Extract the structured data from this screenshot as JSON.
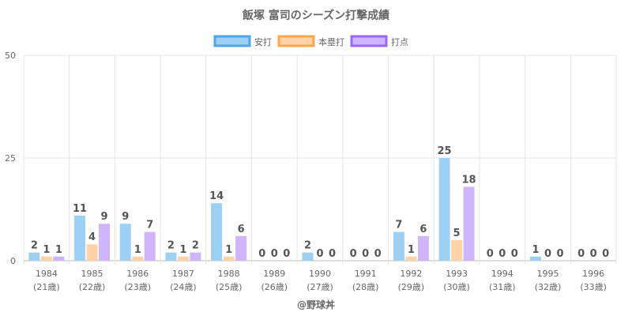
{
  "chart_data": {
    "type": "bar",
    "title": "飯塚 富司のシーズン打撃成績",
    "categories": [
      "1984",
      "1985",
      "1986",
      "1987",
      "1988",
      "1989",
      "1990",
      "1991",
      "1992",
      "1993",
      "1994",
      "1995",
      "1996"
    ],
    "sublabels": [
      "(21歳)",
      "(22歳)",
      "(23歳)",
      "(24歳)",
      "(25歳)",
      "(26歳)",
      "(27歳)",
      "(28歳)",
      "(29歳)",
      "(30歳)",
      "(31歳)",
      "(32歳)",
      "(33歳)"
    ],
    "series": [
      {
        "name": "安打",
        "values": [
          2,
          11,
          9,
          2,
          14,
          0,
          2,
          0,
          7,
          25,
          0,
          1,
          0
        ],
        "fill": "#9dd0f5",
        "stroke": "#4ea6e8"
      },
      {
        "name": "本塁打",
        "values": [
          1,
          4,
          1,
          1,
          1,
          0,
          0,
          0,
          1,
          5,
          0,
          0,
          0
        ],
        "fill": "#ffd3a5",
        "stroke": "#ffa64d"
      },
      {
        "name": "打点",
        "values": [
          1,
          9,
          7,
          2,
          6,
          0,
          0,
          0,
          6,
          18,
          0,
          0,
          0
        ],
        "fill": "#cfb5fd",
        "stroke": "#9966ff"
      }
    ],
    "ylim": [
      0,
      50
    ],
    "yticks": [
      "0",
      "25",
      "50"
    ],
    "grid": true,
    "legend": "top-center",
    "xlabel": "",
    "ylabel": ""
  },
  "footer": "@野球丼"
}
